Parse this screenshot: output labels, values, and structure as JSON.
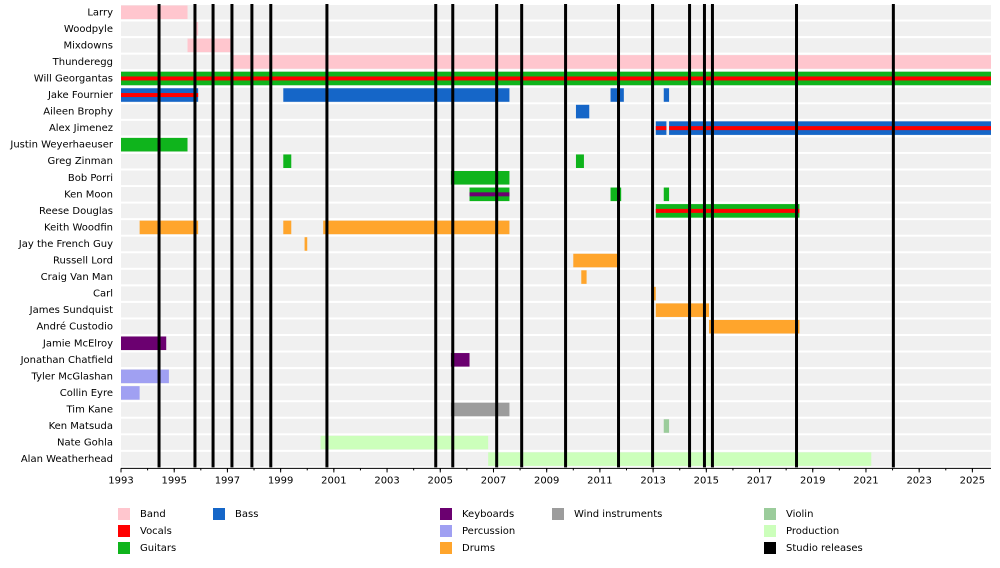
{
  "chart_data": {
    "type": "timeline",
    "xlim": [
      1993,
      2025.7
    ],
    "xticks": [
      1993,
      1995,
      1997,
      1999,
      2001,
      2003,
      2005,
      2007,
      2009,
      2011,
      2013,
      2015,
      2017,
      2019,
      2021,
      2023,
      2025
    ],
    "legend": [
      {
        "name": "Band",
        "color": "#ffc6ce"
      },
      {
        "name": "Vocals",
        "color": "#ff0000"
      },
      {
        "name": "Guitars",
        "color": "#0fb41c"
      },
      {
        "name": "Bass",
        "color": "#1566c8"
      },
      {
        "name": "Keyboards",
        "color": "#6b0070"
      },
      {
        "name": "Percussion",
        "color": "#a0a0f2"
      },
      {
        "name": "Drums",
        "color": "#ffa52c"
      },
      {
        "name": "Wind instruments",
        "color": "#9c9c9c"
      },
      {
        "name": "Violin",
        "color": "#9bcc9b"
      },
      {
        "name": "Production",
        "color": "#ccffbb"
      },
      {
        "name": "Studio releases",
        "color": "#000000"
      }
    ],
    "studio_releases": [
      1994.43,
      1995.78,
      1996.46,
      1997.17,
      1997.92,
      1998.63,
      2000.74,
      2004.83,
      2005.47,
      2007.12,
      2008.06,
      2009.71,
      2011.7,
      2012.98,
      2014.37,
      2014.93,
      2015.23,
      2018.39,
      2022.03
    ],
    "members": [
      {
        "name": "Larry",
        "periods": [
          {
            "role": "Band",
            "start": 1993,
            "end": 1995.5
          }
        ]
      },
      {
        "name": "Woodpyle",
        "periods": [
          {
            "role": "Band",
            "start": 1995.8,
            "end": 1995.9
          }
        ]
      },
      {
        "name": "Mixdowns",
        "periods": [
          {
            "role": "Band",
            "start": 1995.5,
            "end": 1997.2
          }
        ]
      },
      {
        "name": "Thunderegg",
        "periods": [
          {
            "role": "Band",
            "start": 1997.2,
            "end": 2025.7
          }
        ]
      },
      {
        "name": "Will Georgantas",
        "periods": [
          {
            "role": "Guitars",
            "start": 1993,
            "end": 2025.7,
            "stripe": "Vocals"
          }
        ]
      },
      {
        "name": "Jake Fournier",
        "periods": [
          {
            "role": "Bass",
            "start": 1993,
            "end": 1995.9,
            "stripe": "Vocals"
          },
          {
            "role": "Bass",
            "start": 1999.1,
            "end": 2007.6
          },
          {
            "role": "Bass",
            "start": 2011.4,
            "end": 2011.9
          },
          {
            "role": "Bass",
            "start": 2013.4,
            "end": 2013.6
          }
        ]
      },
      {
        "name": "Aileen Brophy",
        "periods": [
          {
            "role": "Bass",
            "start": 2010.1,
            "end": 2010.6
          }
        ]
      },
      {
        "name": "Alex Jimenez",
        "periods": [
          {
            "role": "Bass",
            "start": 2013.1,
            "end": 2013.5,
            "stripe": "Vocals"
          },
          {
            "role": "Bass",
            "start": 2013.6,
            "end": 2025.7,
            "stripe": "Vocals"
          }
        ]
      },
      {
        "name": "Justin Weyerhaeuser",
        "periods": [
          {
            "role": "Guitars",
            "start": 1993,
            "end": 1995.5
          }
        ]
      },
      {
        "name": "Greg Zinman",
        "periods": [
          {
            "role": "Guitars",
            "start": 1999.1,
            "end": 1999.4
          },
          {
            "role": "Guitars",
            "start": 2010.1,
            "end": 2010.4
          }
        ]
      },
      {
        "name": "Bob Porri",
        "periods": [
          {
            "role": "Guitars",
            "start": 2005.4,
            "end": 2007.6
          }
        ]
      },
      {
        "name": "Ken Moon",
        "periods": [
          {
            "role": "Guitars",
            "start": 2006.1,
            "end": 2007.6,
            "stripe": "Keyboards"
          },
          {
            "role": "Guitars",
            "start": 2011.4,
            "end": 2011.8
          },
          {
            "role": "Guitars",
            "start": 2013.4,
            "end": 2013.6
          }
        ]
      },
      {
        "name": "Reese Douglas",
        "periods": [
          {
            "role": "Guitars",
            "start": 2013.1,
            "end": 2018.5,
            "stripe": "Vocals"
          }
        ]
      },
      {
        "name": "Keith Woodfin",
        "periods": [
          {
            "role": "Drums",
            "start": 1993.7,
            "end": 1995.9
          },
          {
            "role": "Drums",
            "start": 1999.1,
            "end": 1999.4
          },
          {
            "role": "Drums",
            "start": 2000.6,
            "end": 2007.6
          }
        ]
      },
      {
        "name": "Jay the French Guy",
        "periods": [
          {
            "role": "Drums",
            "start": 1999.9,
            "end": 2000.0
          }
        ]
      },
      {
        "name": "Russell Lord",
        "periods": [
          {
            "role": "Drums",
            "start": 2010.0,
            "end": 2011.7
          }
        ]
      },
      {
        "name": "Craig Van Man",
        "periods": [
          {
            "role": "Drums",
            "start": 2010.3,
            "end": 2010.5
          }
        ]
      },
      {
        "name": "Carl",
        "periods": [
          {
            "role": "Drums",
            "start": 2013.0,
            "end": 2013.1
          }
        ]
      },
      {
        "name": "James Sundquist",
        "periods": [
          {
            "role": "Drums",
            "start": 2013.1,
            "end": 2015.1
          }
        ]
      },
      {
        "name": "André Custodio",
        "periods": [
          {
            "role": "Drums",
            "start": 2015.1,
            "end": 2018.5
          }
        ]
      },
      {
        "name": "Jamie McElroy",
        "periods": [
          {
            "role": "Keyboards",
            "start": 1993,
            "end": 1994.7
          }
        ]
      },
      {
        "name": "Jonathan Chatfield",
        "periods": [
          {
            "role": "Keyboards",
            "start": 2005.4,
            "end": 2006.1
          }
        ]
      },
      {
        "name": "Tyler McGlashan",
        "periods": [
          {
            "role": "Percussion",
            "start": 1993,
            "end": 1994.8
          }
        ]
      },
      {
        "name": "Collin Eyre",
        "periods": [
          {
            "role": "Percussion",
            "start": 1993,
            "end": 1993.7
          }
        ]
      },
      {
        "name": "Tim Kane",
        "periods": [
          {
            "role": "Wind instruments",
            "start": 2005.4,
            "end": 2007.6
          }
        ]
      },
      {
        "name": "Ken Matsuda",
        "periods": [
          {
            "role": "Violin",
            "start": 2013.4,
            "end": 2013.6
          }
        ]
      },
      {
        "name": "Nate Gohla",
        "periods": [
          {
            "role": "Production",
            "start": 2000.5,
            "end": 2006.8
          }
        ]
      },
      {
        "name": "Alan Weatherhead",
        "periods": [
          {
            "role": "Production",
            "start": 2006.8,
            "end": 2021.2
          }
        ]
      }
    ]
  }
}
